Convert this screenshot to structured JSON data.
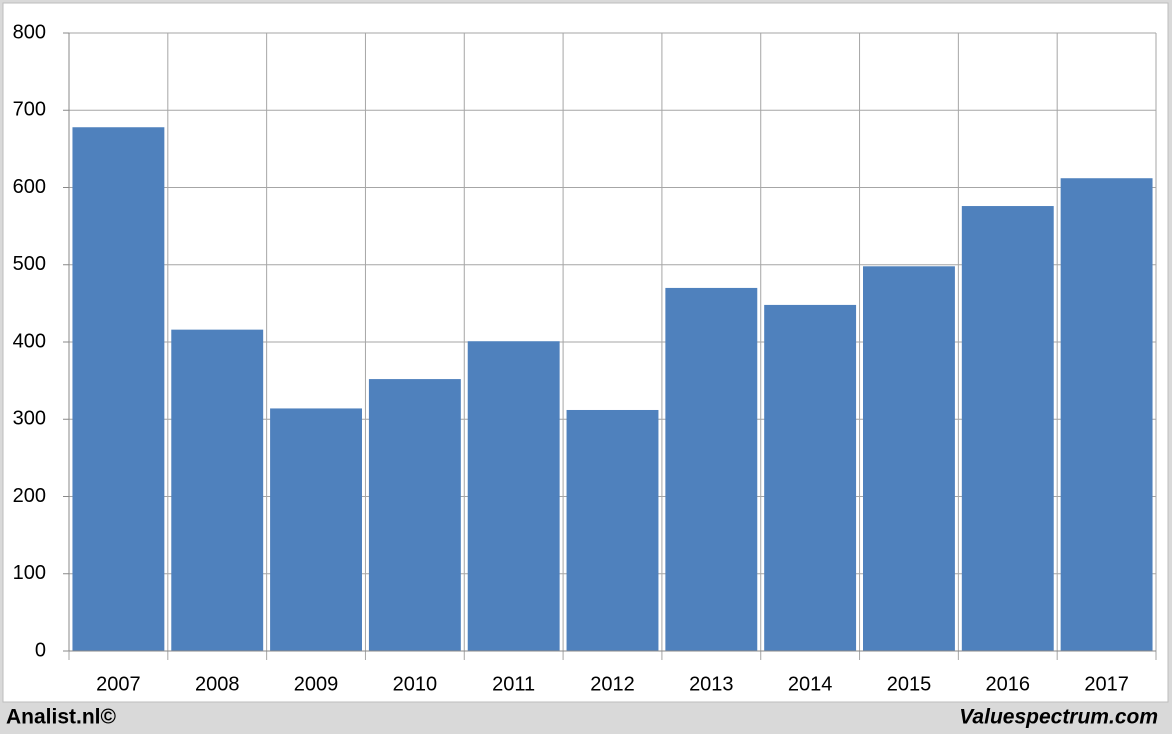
{
  "chart_data": {
    "type": "bar",
    "categories": [
      "2007",
      "2008",
      "2009",
      "2010",
      "2011",
      "2012",
      "2013",
      "2014",
      "2015",
      "2016",
      "2017"
    ],
    "values": [
      678,
      416,
      314,
      352,
      401,
      312,
      470,
      448,
      498,
      576,
      612
    ],
    "color": "#4f81bd",
    "ylim": [
      0,
      800
    ],
    "yticks": [
      0,
      100,
      200,
      300,
      400,
      500,
      600,
      700,
      800
    ],
    "grid": true
  },
  "footer": {
    "left": "Analist.nl©",
    "right": "Valuespectrum.com"
  }
}
